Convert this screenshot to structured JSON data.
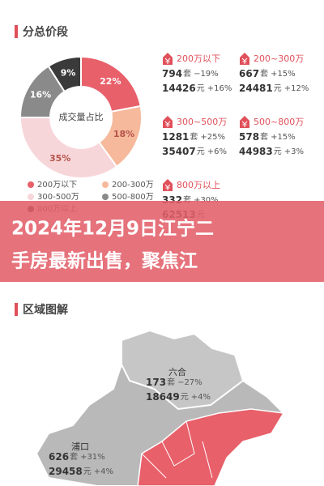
{
  "price_section": {
    "title": "分总价段"
  },
  "chart_data": {
    "type": "pie",
    "center_label": "成交量占比",
    "categories": [
      "200万以下",
      "200-300万",
      "300-500万",
      "500-800万",
      "800万以上"
    ],
    "values": [
      22,
      18,
      35,
      16,
      9
    ],
    "value_labels": [
      "22%",
      "18%",
      "35%",
      "16%",
      "9%"
    ],
    "colors": [
      "#e8606a",
      "#f6b99c",
      "#f7d6da",
      "#8a8a8a",
      "#3a3a3a"
    ]
  },
  "price_stats": [
    {
      "range": "200万以下",
      "count": "794",
      "count_unit": "套",
      "count_change": "−19%",
      "price": "14426",
      "price_unit": "元",
      "price_change": "+16%"
    },
    {
      "range": "200~300万",
      "count": "667",
      "count_unit": "套",
      "count_change": "+15%",
      "price": "24481",
      "price_unit": "元",
      "price_change": "+12%"
    },
    {
      "range": "300~500万",
      "count": "1281",
      "count_unit": "套",
      "count_change": "+25%",
      "price": "35407",
      "price_unit": "元",
      "price_change": "+6%"
    },
    {
      "range": "500~800万",
      "count": "578",
      "count_unit": "套",
      "count_change": "+15%",
      "price": "44983",
      "price_unit": "元",
      "price_change": "+3%"
    },
    {
      "range": "800万以上",
      "count": "332",
      "count_unit": "套",
      "count_change": "+30%",
      "price": "62513",
      "price_unit": "元"
    }
  ],
  "banner": {
    "lines": [
      "2024年12月9日江宁二",
      "手房最新出售，聚焦江"
    ]
  },
  "region_section": {
    "title": "区域图解",
    "regions": [
      {
        "name": "六合",
        "count": "173",
        "count_unit": "套",
        "count_change": "−27%",
        "price": "18649",
        "price_unit": "元",
        "price_change": "+4%"
      },
      {
        "name": "浦口",
        "count": "626",
        "count_unit": "套",
        "count_change": "+31%",
        "price": "29458",
        "price_unit": "元",
        "price_change": "+4%"
      }
    ]
  }
}
